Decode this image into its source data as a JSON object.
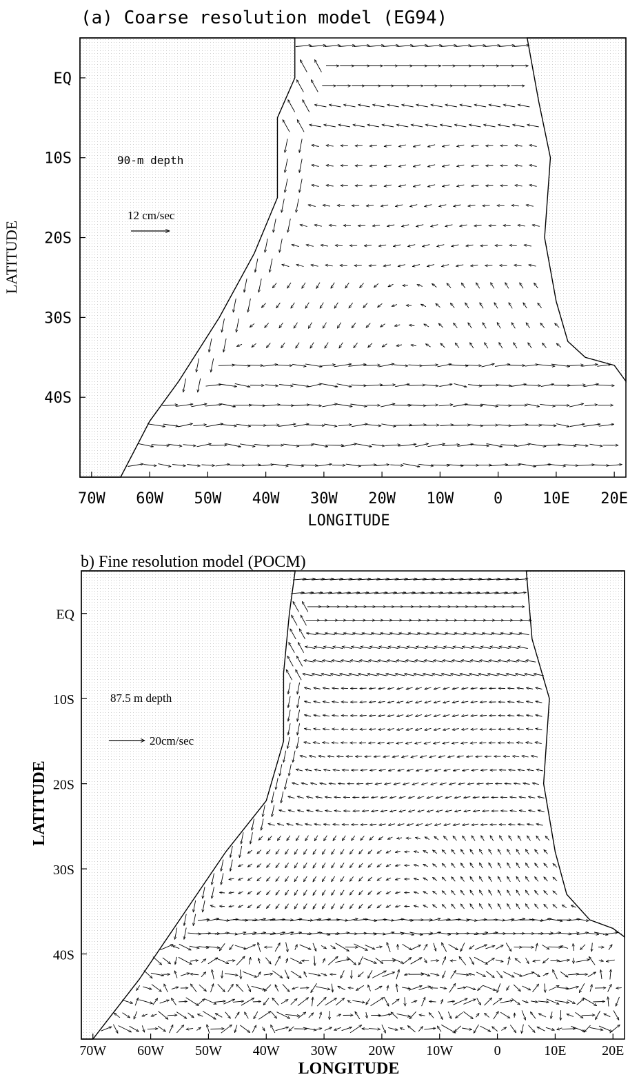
{
  "chart_data": [
    {
      "type": "vector-field",
      "title": "(a) Coarse resolution model (EG94)",
      "xlabel": "LONGITUDE",
      "ylabel": "LATITUDE",
      "xlim": [
        -72,
        22
      ],
      "ylim": [
        -50,
        5
      ],
      "xticks": [
        {
          "value": -70,
          "label": "70W"
        },
        {
          "value": -60,
          "label": "60W"
        },
        {
          "value": -50,
          "label": "50W"
        },
        {
          "value": -40,
          "label": "40W"
        },
        {
          "value": -30,
          "label": "30W"
        },
        {
          "value": -20,
          "label": "20W"
        },
        {
          "value": -10,
          "label": "10W"
        },
        {
          "value": 0,
          "label": "0"
        },
        {
          "value": 10,
          "label": "10E"
        },
        {
          "value": 20,
          "label": "20E"
        }
      ],
      "yticks": [
        {
          "value": 0,
          "label": "EQ"
        },
        {
          "value": -10,
          "label": "10S"
        },
        {
          "value": -20,
          "label": "20S"
        },
        {
          "value": -30,
          "label": "30S"
        },
        {
          "value": -40,
          "label": "40S"
        }
      ],
      "annotations": {
        "depth": "90-m depth",
        "scale_label": "12 cm/sec"
      },
      "scale_speed": 12,
      "coast_west": [
        [
          -35,
          5
        ],
        [
          -35,
          0
        ],
        [
          -38,
          -5
        ],
        [
          -38,
          -15
        ],
        [
          -42,
          -22
        ],
        [
          -48,
          -30
        ],
        [
          -55,
          -38
        ],
        [
          -60,
          -43
        ],
        [
          -65,
          -50
        ]
      ],
      "coast_east": [
        [
          5,
          5
        ],
        [
          7,
          -3
        ],
        [
          9,
          -10
        ],
        [
          8,
          -20
        ],
        [
          10,
          -28
        ],
        [
          12,
          -33
        ],
        [
          15,
          -35
        ],
        [
          20,
          -36
        ],
        [
          22,
          -38
        ]
      ]
    },
    {
      "type": "vector-field",
      "title": "b) Fine resolution model (POCM)",
      "xlabel": "LONGITUDE",
      "ylabel": "LATITUDE",
      "xlim": [
        -72,
        22
      ],
      "ylim": [
        -50,
        5
      ],
      "xticks": [
        {
          "value": -70,
          "label": "70W"
        },
        {
          "value": -60,
          "label": "60W"
        },
        {
          "value": -50,
          "label": "50W"
        },
        {
          "value": -40,
          "label": "40W"
        },
        {
          "value": -30,
          "label": "30W"
        },
        {
          "value": -20,
          "label": "20W"
        },
        {
          "value": -10,
          "label": "10W"
        },
        {
          "value": 0,
          "label": "0"
        },
        {
          "value": 10,
          "label": "10E"
        },
        {
          "value": 20,
          "label": "20E"
        }
      ],
      "yticks": [
        {
          "value": 0,
          "label": "EQ"
        },
        {
          "value": -10,
          "label": "10S"
        },
        {
          "value": -20,
          "label": "20S"
        },
        {
          "value": -30,
          "label": "30S"
        },
        {
          "value": -40,
          "label": "40S"
        }
      ],
      "annotations": {
        "depth": "87.5 m depth",
        "scale_label": "20cm/sec"
      },
      "scale_speed": 20,
      "coast_west": [
        [
          -35,
          5
        ],
        [
          -36,
          0
        ],
        [
          -37,
          -7
        ],
        [
          -37,
          -15
        ],
        [
          -40,
          -22
        ],
        [
          -47,
          -28
        ],
        [
          -55,
          -36
        ],
        [
          -62,
          -43
        ],
        [
          -70,
          -50
        ]
      ],
      "coast_east": [
        [
          5,
          5
        ],
        [
          6,
          -3
        ],
        [
          9,
          -10
        ],
        [
          8,
          -20
        ],
        [
          10,
          -28
        ],
        [
          12,
          -33
        ],
        [
          16,
          -36
        ],
        [
          20,
          -37
        ],
        [
          22,
          -38
        ]
      ]
    }
  ]
}
